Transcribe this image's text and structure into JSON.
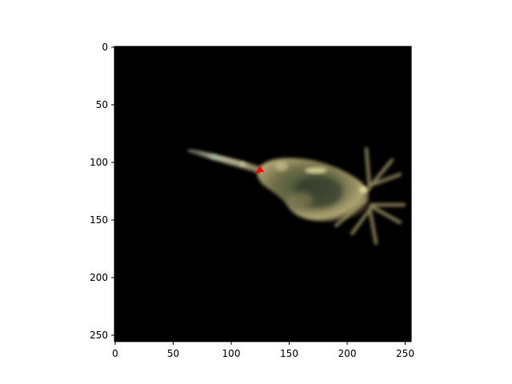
{
  "figure": {
    "type": "image-display",
    "x_axis": {
      "ticks": [
        "0",
        "50",
        "100",
        "150",
        "200",
        "250"
      ],
      "range": [
        0,
        256
      ]
    },
    "y_axis": {
      "ticks": [
        "0",
        "50",
        "100",
        "150",
        "200",
        "250"
      ],
      "range": [
        0,
        256
      ],
      "inverted": true
    },
    "background_color": "#000000",
    "marker": {
      "color": "#ff0000",
      "shape": "triangle",
      "x": 125,
      "y": 106
    }
  }
}
